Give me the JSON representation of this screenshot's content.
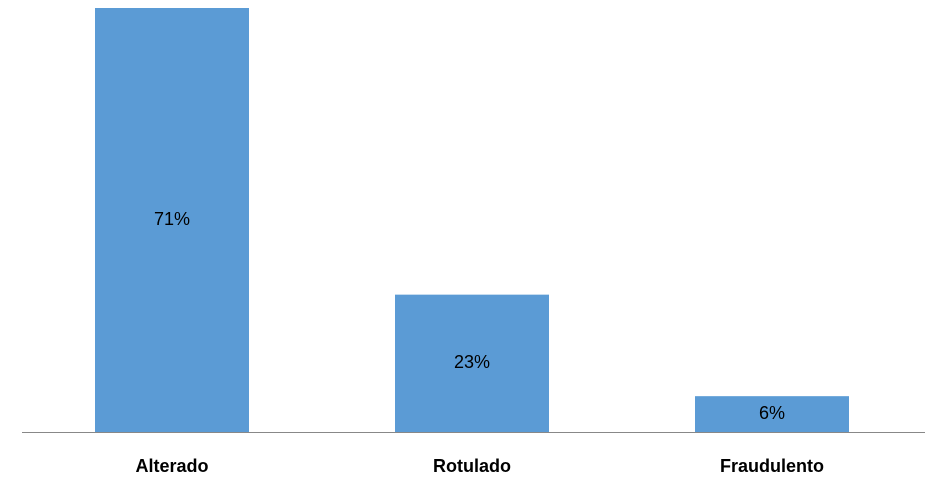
{
  "chart_data": {
    "type": "bar",
    "categories": [
      "Alterado",
      "Rotulado",
      "Fraudulento"
    ],
    "values": [
      71,
      23,
      6
    ],
    "value_labels": [
      "71%",
      "23%",
      "6%"
    ],
    "color": "#5b9bd5"
  }
}
